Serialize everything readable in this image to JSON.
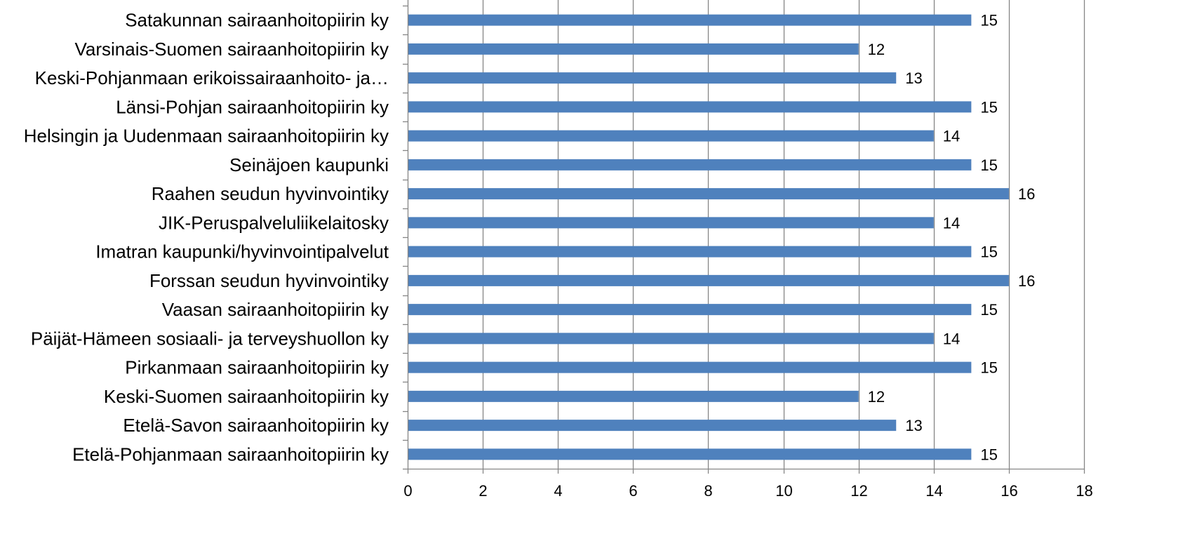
{
  "chart_data": {
    "type": "bar",
    "orientation": "horizontal",
    "categories": [
      "Satakunnan sairaanhoitopiirin ky",
      "Varsinais-Suomen sairaanhoitopiirin ky",
      "Keski-Pohjanmaan erikoissairaanhoito- ja…",
      "Länsi-Pohjan sairaanhoitopiirin ky",
      "Helsingin ja Uudenmaan sairaanhoitopiirin ky",
      "Seinäjoen kaupunki",
      "Raahen seudun hyvinvointiky",
      "JIK-Peruspalveluliikelaitosky",
      "Imatran kaupunki/hyvinvointipalvelut",
      "Forssan seudun hyvinvointiky",
      "Vaasan sairaanhoitopiirin ky",
      "Päijät-Hämeen sosiaali- ja terveyshuollon ky",
      "Pirkanmaan sairaanhoitopiirin ky",
      "Keski-Suomen sairaanhoitopiirin ky",
      "Etelä-Savon sairaanhoitopiirin ky",
      "Etelä-Pohjanmaan sairaanhoitopiirin ky"
    ],
    "values": [
      15,
      12,
      13,
      15,
      14,
      15,
      16,
      14,
      15,
      16,
      15,
      14,
      15,
      12,
      13,
      15
    ],
    "xlim": [
      0,
      18
    ],
    "xticks": [
      "0",
      "2",
      "4",
      "6",
      "8",
      "10",
      "12",
      "14",
      "16",
      "18"
    ],
    "grid": "vertical",
    "data_labels": true,
    "colors": {
      "bar": "#4F81BD",
      "grid": "#868686",
      "axis": "#868686",
      "text": "#000000"
    }
  }
}
